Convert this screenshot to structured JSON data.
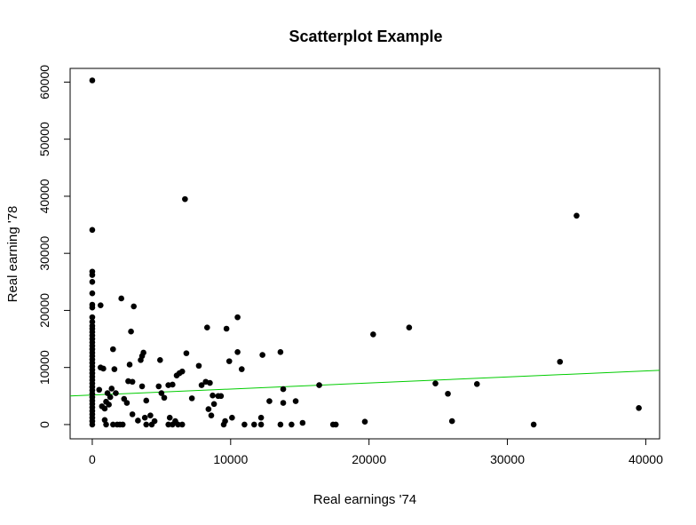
{
  "chart_data": {
    "type": "scatter",
    "title": "Scatterplot Example",
    "xlabel": "Real earnings '74",
    "ylabel": "Real earning '78",
    "xlim": [
      -1600,
      41000
    ],
    "ylim": [
      -2500,
      62400
    ],
    "x_ticks": [
      0,
      10000,
      20000,
      30000,
      40000
    ],
    "y_ticks": [
      0,
      10000,
      20000,
      30000,
      40000,
      50000,
      60000
    ],
    "grid": false,
    "legend": "none",
    "point_color": "#000000",
    "trend_line": {
      "x": [
        -1600,
        41000
      ],
      "y": [
        5000,
        9500
      ],
      "color": "#00cc00"
    },
    "points": [
      {
        "x": 0,
        "y": 60300
      },
      {
        "x": 0,
        "y": 34100
      },
      {
        "x": 0,
        "y": 26800
      },
      {
        "x": 0,
        "y": 26200
      },
      {
        "x": 0,
        "y": 25000
      },
      {
        "x": 0,
        "y": 23000
      },
      {
        "x": 0,
        "y": 21000
      },
      {
        "x": 0,
        "y": 20500
      },
      {
        "x": 0,
        "y": 18800
      },
      {
        "x": 0,
        "y": 18000
      },
      {
        "x": 0,
        "y": 17300
      },
      {
        "x": 0,
        "y": 16800
      },
      {
        "x": 0,
        "y": 16200
      },
      {
        "x": 0,
        "y": 15600
      },
      {
        "x": 0,
        "y": 15000
      },
      {
        "x": 0,
        "y": 14400
      },
      {
        "x": 0,
        "y": 13800
      },
      {
        "x": 0,
        "y": 13200
      },
      {
        "x": 0,
        "y": 12600
      },
      {
        "x": 0,
        "y": 12000
      },
      {
        "x": 0,
        "y": 11400
      },
      {
        "x": 0,
        "y": 10800
      },
      {
        "x": 0,
        "y": 10200
      },
      {
        "x": 0,
        "y": 9600
      },
      {
        "x": 0,
        "y": 9000
      },
      {
        "x": 0,
        "y": 8400
      },
      {
        "x": 0,
        "y": 7800
      },
      {
        "x": 0,
        "y": 7200
      },
      {
        "x": 0,
        "y": 6600
      },
      {
        "x": 0,
        "y": 6000
      },
      {
        "x": 0,
        "y": 5400
      },
      {
        "x": 0,
        "y": 4800
      },
      {
        "x": 0,
        "y": 4200
      },
      {
        "x": 0,
        "y": 3600
      },
      {
        "x": 0,
        "y": 3000
      },
      {
        "x": 0,
        "y": 2400
      },
      {
        "x": 0,
        "y": 1800
      },
      {
        "x": 0,
        "y": 1200
      },
      {
        "x": 0,
        "y": 600
      },
      {
        "x": 0,
        "y": 0
      },
      {
        "x": 600,
        "y": 20900
      },
      {
        "x": 500,
        "y": 6100
      },
      {
        "x": 600,
        "y": 10000
      },
      {
        "x": 800,
        "y": 9800
      },
      {
        "x": 700,
        "y": 3200
      },
      {
        "x": 900,
        "y": 2800
      },
      {
        "x": 1000,
        "y": 4000
      },
      {
        "x": 1100,
        "y": 5500
      },
      {
        "x": 1200,
        "y": 3500
      },
      {
        "x": 1400,
        "y": 6300
      },
      {
        "x": 1500,
        "y": 13200
      },
      {
        "x": 1600,
        "y": 9700
      },
      {
        "x": 1700,
        "y": 5500
      },
      {
        "x": 1300,
        "y": 4800
      },
      {
        "x": 900,
        "y": 800
      },
      {
        "x": 1000,
        "y": 0
      },
      {
        "x": 1500,
        "y": 0
      },
      {
        "x": 1800,
        "y": 0
      },
      {
        "x": 2000,
        "y": 0
      },
      {
        "x": 2200,
        "y": 0
      },
      {
        "x": 2100,
        "y": 22100
      },
      {
        "x": 2300,
        "y": 4500
      },
      {
        "x": 2500,
        "y": 3800
      },
      {
        "x": 2600,
        "y": 7600
      },
      {
        "x": 2800,
        "y": 16300
      },
      {
        "x": 2700,
        "y": 10500
      },
      {
        "x": 2900,
        "y": 7500
      },
      {
        "x": 3000,
        "y": 20700
      },
      {
        "x": 2900,
        "y": 1800
      },
      {
        "x": 3300,
        "y": 700
      },
      {
        "x": 3500,
        "y": 11300
      },
      {
        "x": 3600,
        "y": 6700
      },
      {
        "x": 3600,
        "y": 12000
      },
      {
        "x": 3700,
        "y": 12600
      },
      {
        "x": 3800,
        "y": 1200
      },
      {
        "x": 3900,
        "y": 4200
      },
      {
        "x": 3900,
        "y": 0
      },
      {
        "x": 4300,
        "y": 0
      },
      {
        "x": 4200,
        "y": 1600
      },
      {
        "x": 4500,
        "y": 600
      },
      {
        "x": 4800,
        "y": 6700
      },
      {
        "x": 4900,
        "y": 11300
      },
      {
        "x": 5000,
        "y": 5500
      },
      {
        "x": 5200,
        "y": 4700
      },
      {
        "x": 5500,
        "y": 6900
      },
      {
        "x": 5600,
        "y": 1200
      },
      {
        "x": 5800,
        "y": 7000
      },
      {
        "x": 5500,
        "y": 0
      },
      {
        "x": 5800,
        "y": 0
      },
      {
        "x": 6000,
        "y": 600
      },
      {
        "x": 6100,
        "y": 8600
      },
      {
        "x": 6300,
        "y": 9000
      },
      {
        "x": 6500,
        "y": 9300
      },
      {
        "x": 6800,
        "y": 12500
      },
      {
        "x": 6700,
        "y": 39500
      },
      {
        "x": 6200,
        "y": 0
      },
      {
        "x": 6500,
        "y": 0
      },
      {
        "x": 7200,
        "y": 4600
      },
      {
        "x": 7700,
        "y": 10300
      },
      {
        "x": 7900,
        "y": 6900
      },
      {
        "x": 8200,
        "y": 7500
      },
      {
        "x": 8400,
        "y": 2700
      },
      {
        "x": 8600,
        "y": 1600
      },
      {
        "x": 8300,
        "y": 17000
      },
      {
        "x": 8500,
        "y": 7300
      },
      {
        "x": 8700,
        "y": 5100
      },
      {
        "x": 8800,
        "y": 3600
      },
      {
        "x": 9100,
        "y": 5000
      },
      {
        "x": 9300,
        "y": 5000
      },
      {
        "x": 9500,
        "y": 0
      },
      {
        "x": 9600,
        "y": 600
      },
      {
        "x": 9700,
        "y": 16800
      },
      {
        "x": 9900,
        "y": 11100
      },
      {
        "x": 10100,
        "y": 1200
      },
      {
        "x": 10500,
        "y": 12700
      },
      {
        "x": 10500,
        "y": 18800
      },
      {
        "x": 10800,
        "y": 9700
      },
      {
        "x": 11000,
        "y": 0
      },
      {
        "x": 11700,
        "y": 0
      },
      {
        "x": 12200,
        "y": 1200
      },
      {
        "x": 12200,
        "y": 0
      },
      {
        "x": 12300,
        "y": 12200
      },
      {
        "x": 12800,
        "y": 4100
      },
      {
        "x": 13600,
        "y": 12700
      },
      {
        "x": 13600,
        "y": 0
      },
      {
        "x": 13800,
        "y": 6200
      },
      {
        "x": 13800,
        "y": 3800
      },
      {
        "x": 14400,
        "y": 0
      },
      {
        "x": 14700,
        "y": 4100
      },
      {
        "x": 15200,
        "y": 300
      },
      {
        "x": 16400,
        "y": 6900
      },
      {
        "x": 17400,
        "y": 0
      },
      {
        "x": 17600,
        "y": 0
      },
      {
        "x": 19700,
        "y": 500
      },
      {
        "x": 20300,
        "y": 15800
      },
      {
        "x": 22900,
        "y": 17000
      },
      {
        "x": 24800,
        "y": 7200
      },
      {
        "x": 25700,
        "y": 5400
      },
      {
        "x": 26000,
        "y": 600
      },
      {
        "x": 27800,
        "y": 7100
      },
      {
        "x": 31900,
        "y": 0
      },
      {
        "x": 33800,
        "y": 11000
      },
      {
        "x": 35000,
        "y": 36600
      },
      {
        "x": 39500,
        "y": 2900
      }
    ]
  }
}
